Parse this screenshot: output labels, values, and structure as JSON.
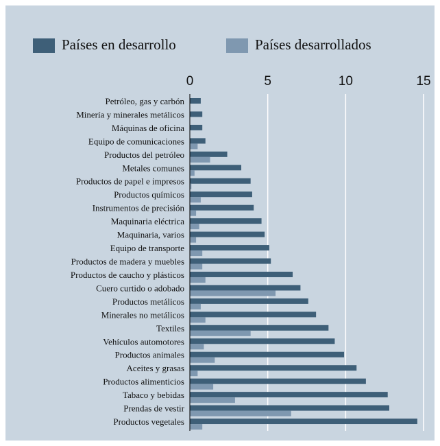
{
  "chart_data": {
    "type": "bar",
    "orientation": "horizontal",
    "categories": [
      "Petróleo, gas y carbón",
      "Minería y minerales metálicos",
      "Máquinas de oficina",
      "Equipo de comunicaciones",
      "Productos del petróleo",
      "Metales comunes",
      "Productos de papel e impresos",
      "Productos químicos",
      "Instrumentos de precisión",
      "Maquinaria eléctrica",
      "Maquinaria, varios",
      "Equipo de transporte",
      "Productos de madera y muebles",
      "Productos de caucho y plásticos",
      "Cuero curtido o adobado",
      "Productos metálicos",
      "Minerales no metálicos",
      "Textiles",
      "Vehículos automotores",
      "Productos animales",
      "Aceites y grasas",
      "Productos alimenticios",
      "Tabaco y bebidas",
      "Prendas de vestir",
      "Productos vegetales"
    ],
    "series": [
      {
        "name": "Países en desarrollo",
        "color": "#3e5f78",
        "values": [
          0.7,
          0.8,
          0.8,
          1.0,
          2.4,
          3.3,
          3.9,
          4.0,
          4.1,
          4.6,
          4.8,
          5.1,
          5.2,
          6.6,
          7.1,
          7.6,
          8.1,
          8.9,
          9.3,
          9.9,
          10.7,
          11.3,
          12.7,
          12.8,
          14.6
        ]
      },
      {
        "name": "Países desarrollados",
        "color": "#7f98b0",
        "values": [
          0,
          0,
          0,
          0.5,
          1.3,
          0.3,
          0.1,
          0.7,
          0.4,
          0.6,
          0.4,
          0.8,
          0.8,
          1.0,
          5.5,
          0.7,
          1.0,
          3.9,
          0.9,
          1.6,
          0.5,
          1.5,
          2.9,
          6.5,
          0.8
        ]
      }
    ],
    "xlim": [
      0,
      15
    ],
    "xticks": [
      0,
      5,
      10,
      15
    ],
    "grid": true,
    "legend": "top"
  }
}
